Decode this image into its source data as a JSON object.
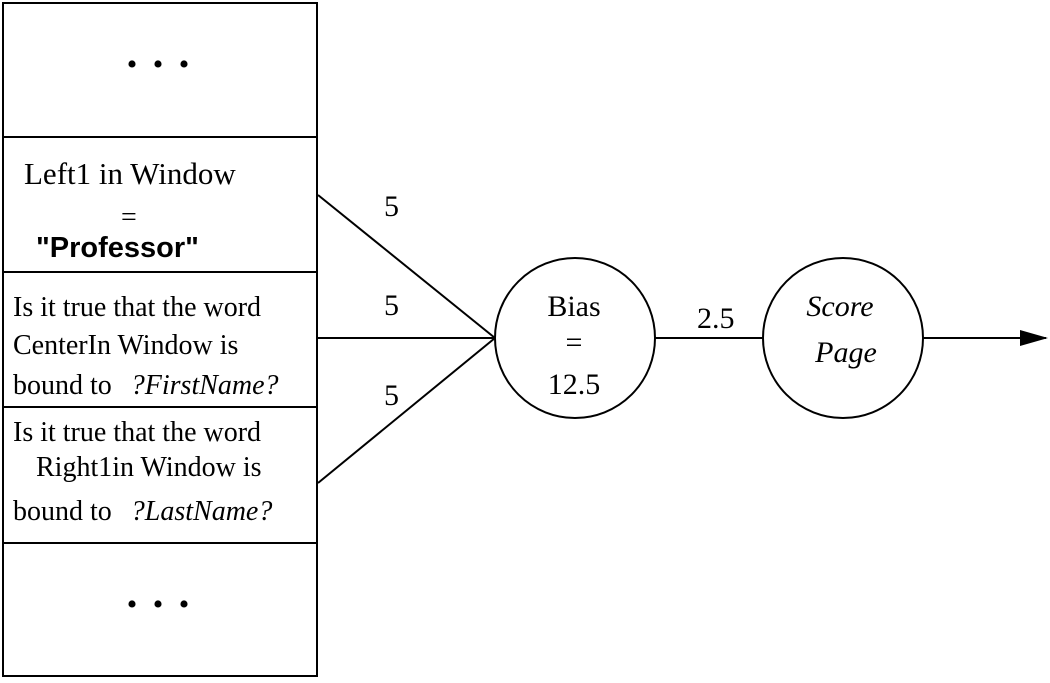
{
  "inputs": {
    "top_ellipsis": "• • •",
    "bottom_ellipsis": "• • •",
    "feature1": {
      "line1": "Left1 in Window",
      "line2": "=",
      "line3": "\"Professor\""
    },
    "feature2": {
      "line1": "Is it true that the word",
      "line2": "CenterIn Window is",
      "line3_prefix": "bound to",
      "line3_var": "?FirstName?"
    },
    "feature3": {
      "line1": "Is it true that the word",
      "line2": "Right1in Window is",
      "line3_prefix": "bound to",
      "line3_var": "?LastName?"
    }
  },
  "weights": {
    "w1": "5",
    "w2": "5",
    "w3": "5",
    "w_out": "2.5"
  },
  "bias_node": {
    "line1": "Bias",
    "line2": "=",
    "line3": "12.5"
  },
  "output_node": {
    "line1": "Score",
    "line2": "Page"
  }
}
